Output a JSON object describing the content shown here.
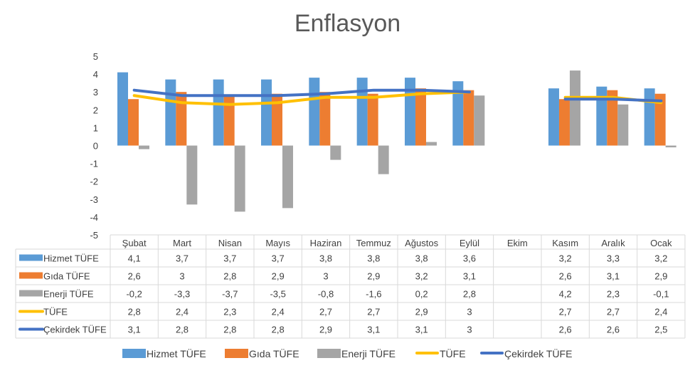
{
  "chart_data": {
    "type": "bar",
    "title": "Enflasyon",
    "xlabel": "",
    "ylabel": "",
    "ylim": [
      -5,
      5
    ],
    "yticks": [
      5,
      4,
      3,
      2,
      1,
      0,
      -1,
      -2,
      -3,
      -4,
      -5
    ],
    "grid": false,
    "legend_position": "bottom",
    "categories": [
      "Şubat",
      "Mart",
      "Nisan",
      "Mayıs",
      "Haziran",
      "Temmuz",
      "Ağustos",
      "Eylül",
      "Ekim",
      "Kasım",
      "Aralık",
      "Ocak"
    ],
    "series": [
      {
        "name": "Hizmet TÜFE",
        "kind": "bar",
        "color": "#5B9BD5",
        "values": [
          4.1,
          3.7,
          3.7,
          3.7,
          3.8,
          3.8,
          3.8,
          3.6,
          null,
          3.2,
          3.3,
          3.2
        ]
      },
      {
        "name": "Gıda TÜFE",
        "kind": "bar",
        "color": "#ED7D31",
        "values": [
          2.6,
          3,
          2.8,
          2.9,
          3,
          2.9,
          3.2,
          3.1,
          null,
          2.6,
          3.1,
          2.9
        ]
      },
      {
        "name": "Enerji TÜFE",
        "kind": "bar",
        "color": "#A5A5A5",
        "values": [
          -0.2,
          -3.3,
          -3.7,
          -3.5,
          -0.8,
          -1.6,
          0.2,
          2.8,
          null,
          4.2,
          2.3,
          -0.1
        ]
      },
      {
        "name": "TÜFE",
        "kind": "line",
        "color": "#FFC000",
        "values": [
          2.8,
          2.4,
          2.3,
          2.4,
          2.7,
          2.7,
          2.9,
          3,
          null,
          2.7,
          2.7,
          2.4
        ]
      },
      {
        "name": "Çekirdek TÜFE",
        "kind": "line",
        "color": "#4472C4",
        "values": [
          3.1,
          2.8,
          2.8,
          2.8,
          2.9,
          3.1,
          3.1,
          3,
          null,
          2.6,
          2.6,
          2.5
        ]
      }
    ],
    "data_table": true
  }
}
